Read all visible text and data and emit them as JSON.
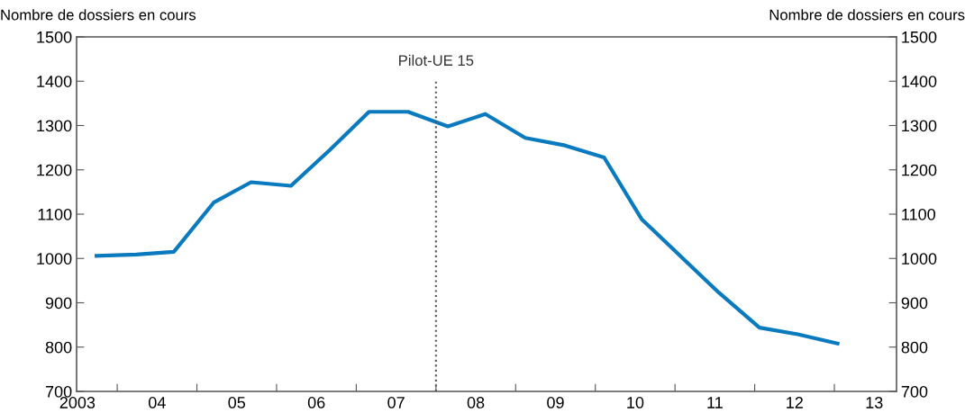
{
  "chart_data": {
    "type": "line",
    "ylabel": "Nombre de dossiers en cours",
    "y2label": "Nombre de dossiers en cours",
    "x": [
      2003.24,
      2003.74,
      2004.21,
      2004.71,
      2005.18,
      2005.68,
      2006.17,
      2006.66,
      2007.15,
      2007.65,
      2008.12,
      2008.62,
      2009.12,
      2009.61,
      2010.08,
      2010.57,
      2011.05,
      2011.56,
      2012.04,
      2012.54
    ],
    "series": [
      {
        "color": "#0a7abf",
        "values": [
          1006,
          1009,
          1015,
          1126,
          1172,
          1164,
          1245,
          1331,
          1331,
          1298,
          1326,
          1272,
          1255,
          1228,
          1089,
          1005,
          923,
          844,
          829,
          808
        ]
      }
    ],
    "xlim": [
      2002.99,
      2013.28
    ],
    "xticks": [
      {
        "value": 2003.5,
        "label": null
      },
      {
        "value": 2004.5,
        "label": null
      },
      {
        "value": 2005.5,
        "label": null
      },
      {
        "value": 2006.5,
        "label": null
      },
      {
        "value": 2007.5,
        "label": null
      },
      {
        "value": 2008.5,
        "label": null
      },
      {
        "value": 2009.5,
        "label": null
      },
      {
        "value": 2010.5,
        "label": null
      },
      {
        "value": 2011.5,
        "label": null
      },
      {
        "value": 2012.5,
        "label": null
      },
      2003,
      {
        "value": 2004,
        "label": "04"
      },
      {
        "value": 2005,
        "label": "05"
      },
      {
        "value": 2006,
        "label": "06"
      },
      {
        "value": 2007,
        "label": "07"
      },
      {
        "value": 2008,
        "label": "08"
      },
      {
        "value": 2009,
        "label": "09"
      },
      {
        "value": 2010,
        "label": "10"
      },
      {
        "value": 2011,
        "label": "11"
      },
      {
        "value": 2012,
        "label": "12"
      },
      {
        "value": 2013,
        "label": "13"
      }
    ],
    "ylim": [
      700,
      1500
    ],
    "yticks": [
      700,
      800,
      900,
      1000,
      1100,
      1200,
      1300,
      1400,
      1500
    ],
    "y2lim": [
      700,
      1500
    ],
    "y2ticks": [
      700,
      800,
      900,
      1000,
      1100,
      1200,
      1300,
      1400,
      1500
    ],
    "ref_lines": [
      {
        "axis": "x",
        "value": 2007.5,
        "label": "Pilot-UE 15",
        "color": "#555555",
        "line_style": "dotted"
      }
    ],
    "grid": false,
    "legend": false,
    "marker": "none",
    "line_style": "solid"
  }
}
